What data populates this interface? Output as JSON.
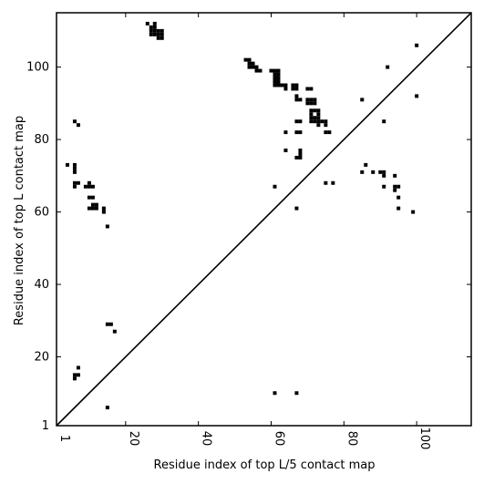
{
  "chart_data": {
    "type": "scatter",
    "title": "",
    "xlabel": "Residue index of top L/5 contact map",
    "ylabel": "Residue index of top L contact map",
    "xlim": [
      1,
      115
    ],
    "ylim": [
      1,
      115
    ],
    "x_ticks": [
      1,
      20,
      40,
      60,
      80,
      100
    ],
    "y_ticks": [
      1,
      20,
      40,
      60,
      80,
      100
    ],
    "diagonal": true,
    "marker": "square",
    "color": "#000000",
    "below_diagonal_points": [
      [
        6,
        14
      ],
      [
        6,
        15
      ],
      [
        7,
        15
      ],
      [
        7,
        17
      ],
      [
        15,
        29
      ],
      [
        16,
        29
      ],
      [
        17,
        27
      ],
      [
        15,
        6
      ],
      [
        61,
        10
      ],
      [
        67,
        10
      ]
    ],
    "above_diagonal_points": [
      [
        4,
        73
      ],
      [
        6,
        73
      ],
      [
        6,
        72
      ],
      [
        6,
        71
      ],
      [
        6,
        68
      ],
      [
        6,
        67
      ],
      [
        7,
        68
      ],
      [
        6,
        85
      ],
      [
        7,
        84
      ],
      [
        9,
        67
      ],
      [
        10,
        68
      ],
      [
        10,
        67
      ],
      [
        11,
        67
      ],
      [
        10,
        64
      ],
      [
        11,
        64
      ],
      [
        10,
        61
      ],
      [
        11,
        61
      ],
      [
        12,
        61
      ],
      [
        11,
        62
      ],
      [
        12,
        62
      ],
      [
        14,
        61
      ],
      [
        14,
        60
      ],
      [
        15,
        56
      ],
      [
        26,
        112
      ],
      [
        27,
        111
      ],
      [
        28,
        112
      ],
      [
        28,
        111
      ],
      [
        28,
        110
      ],
      [
        29,
        110
      ],
      [
        30,
        110
      ],
      [
        28,
        109
      ],
      [
        29,
        109
      ],
      [
        30,
        109
      ],
      [
        29,
        108
      ],
      [
        30,
        108
      ],
      [
        27,
        110
      ],
      [
        27,
        109
      ],
      [
        53,
        102
      ],
      [
        54,
        102
      ],
      [
        54,
        101
      ],
      [
        55,
        101
      ],
      [
        55,
        100
      ],
      [
        54,
        100
      ],
      [
        56,
        100
      ],
      [
        56,
        99
      ],
      [
        57,
        99
      ],
      [
        60,
        99
      ],
      [
        61,
        99
      ],
      [
        62,
        99
      ],
      [
        61,
        98
      ],
      [
        62,
        98
      ],
      [
        61,
        97
      ],
      [
        62,
        97
      ],
      [
        61,
        96
      ],
      [
        62,
        96
      ],
      [
        61,
        95
      ],
      [
        62,
        95
      ],
      [
        63,
        95
      ],
      [
        64,
        95
      ],
      [
        64,
        94
      ],
      [
        66,
        95
      ],
      [
        67,
        95
      ],
      [
        66,
        94
      ],
      [
        67,
        94
      ],
      [
        67,
        92
      ],
      [
        67,
        91
      ],
      [
        68,
        91
      ],
      [
        70,
        94
      ],
      [
        71,
        94
      ],
      [
        70,
        91
      ],
      [
        71,
        91
      ],
      [
        72,
        91
      ],
      [
        70,
        90
      ],
      [
        71,
        90
      ],
      [
        72,
        90
      ],
      [
        71,
        88
      ],
      [
        72,
        88
      ],
      [
        73,
        88
      ],
      [
        71,
        87
      ],
      [
        73,
        87
      ],
      [
        71,
        86
      ],
      [
        72,
        86
      ],
      [
        73,
        86
      ],
      [
        71,
        85
      ],
      [
        72,
        85
      ],
      [
        73,
        85
      ],
      [
        74,
        85
      ],
      [
        75,
        85
      ],
      [
        73,
        84
      ],
      [
        75,
        84
      ],
      [
        67,
        85
      ],
      [
        68,
        85
      ],
      [
        67,
        82
      ],
      [
        68,
        82
      ],
      [
        75,
        82
      ],
      [
        76,
        82
      ],
      [
        64,
        82
      ],
      [
        64,
        77
      ],
      [
        68,
        77
      ],
      [
        68,
        76
      ],
      [
        67,
        75
      ],
      [
        68,
        75
      ],
      [
        61,
        67
      ],
      [
        67,
        61
      ],
      [
        75,
        68
      ],
      [
        77,
        68
      ],
      [
        85,
        91
      ],
      [
        86,
        73
      ],
      [
        85,
        71
      ],
      [
        88,
        71
      ],
      [
        90,
        71
      ],
      [
        91,
        71
      ],
      [
        91,
        70
      ],
      [
        91,
        85
      ],
      [
        92,
        100
      ],
      [
        100,
        106
      ],
      [
        100,
        92
      ],
      [
        91,
        67
      ],
      [
        94,
        70
      ],
      [
        94,
        67
      ],
      [
        95,
        67
      ],
      [
        94,
        66
      ],
      [
        95,
        64
      ],
      [
        95,
        61
      ],
      [
        99,
        60
      ]
    ]
  }
}
